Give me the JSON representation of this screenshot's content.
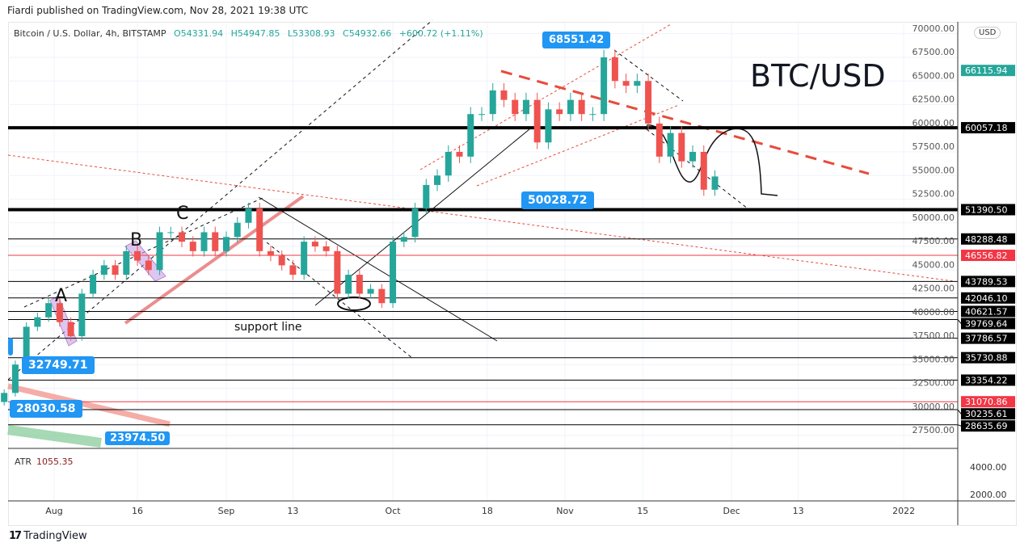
{
  "published": "Fiardi published on TradingView.com, Nov 28, 2021 19:38 UTC",
  "legend": {
    "symbol": "Bitcoin / U.S. Dollar, 4h, BITSTAMP",
    "open": "O54331.94",
    "high": "H54947.85",
    "low": "L53308.93",
    "close": "C54932.66",
    "change": "+600.72 (+1.11%)"
  },
  "currency_button": "USD",
  "title_annotation": "BTC/USD",
  "support_label": "support line",
  "wave_labels": [
    "A",
    "B",
    "C"
  ],
  "callouts": [
    "68551.42",
    "50028.72",
    "32749.71",
    "28030.58",
    "23974.50"
  ],
  "atr": {
    "label": "ATR",
    "value": "1055.35",
    "ticks": [
      "4000.00",
      "2000.00"
    ]
  },
  "footer": {
    "logo": "17",
    "brand": "TradingView"
  },
  "colors": {
    "up": "#26a69a",
    "down": "#ef5350",
    "accent": "#2196f3",
    "level": "#000000",
    "red_level": "#f23645"
  },
  "chart_data": {
    "type": "candlestick",
    "title": "Bitcoin / U.S. Dollar, 4h, BITSTAMP",
    "ylim": [
      26000,
      70500
    ],
    "y_ticks": [
      "70000.00",
      "67500.00",
      "65000.00",
      "62500.00",
      "60000.00",
      "57500.00",
      "55000.00",
      "52500.00",
      "50000.00",
      "47500.00",
      "45000.00",
      "42500.00",
      "40000.00",
      "37500.00",
      "35000.00",
      "32500.00",
      "30000.00",
      "27500.00"
    ],
    "x_ticks": [
      {
        "label": "Aug",
        "date": "2021-08-01"
      },
      {
        "label": "16",
        "date": "2021-08-16"
      },
      {
        "label": "Sep",
        "date": "2021-09-01"
      },
      {
        "label": "13",
        "date": "2021-09-13"
      },
      {
        "label": "Oct",
        "date": "2021-10-01"
      },
      {
        "label": "18",
        "date": "2021-10-18"
      },
      {
        "label": "Nov",
        "date": "2021-11-01"
      },
      {
        "label": "15",
        "date": "2021-11-15"
      },
      {
        "label": "Dec",
        "date": "2021-12-01"
      },
      {
        "label": "13",
        "date": "2021-12-13"
      },
      {
        "label": "2022",
        "date": "2022-01-01"
      }
    ],
    "closes": [
      [
        "2021-07-23",
        32000
      ],
      [
        "2021-07-25",
        35000
      ],
      [
        "2021-07-27",
        39000
      ],
      [
        "2021-07-29",
        40000
      ],
      [
        "2021-07-31",
        41500
      ],
      [
        "2021-08-02",
        39500
      ],
      [
        "2021-08-04",
        38000
      ],
      [
        "2021-08-06",
        42500
      ],
      [
        "2021-08-08",
        44500
      ],
      [
        "2021-08-10",
        45500
      ],
      [
        "2021-08-12",
        44500
      ],
      [
        "2021-08-14",
        47000
      ],
      [
        "2021-08-16",
        46000
      ],
      [
        "2021-08-18",
        45000
      ],
      [
        "2021-08-20",
        49000
      ],
      [
        "2021-08-22",
        49000
      ],
      [
        "2021-08-24",
        48000
      ],
      [
        "2021-08-26",
        47000
      ],
      [
        "2021-08-28",
        49000
      ],
      [
        "2021-08-30",
        47000
      ],
      [
        "2021-09-01",
        48500
      ],
      [
        "2021-09-03",
        50000
      ],
      [
        "2021-09-05",
        51500
      ],
      [
        "2021-09-07",
        47000
      ],
      [
        "2021-09-09",
        46500
      ],
      [
        "2021-09-11",
        45500
      ],
      [
        "2021-09-13",
        44500
      ],
      [
        "2021-09-15",
        48000
      ],
      [
        "2021-09-17",
        47500
      ],
      [
        "2021-09-19",
        47000
      ],
      [
        "2021-09-21",
        42500
      ],
      [
        "2021-09-23",
        44500
      ],
      [
        "2021-09-25",
        42500
      ],
      [
        "2021-09-27",
        43000
      ],
      [
        "2021-09-29",
        41500
      ],
      [
        "2021-10-01",
        48000
      ],
      [
        "2021-10-03",
        48500
      ],
      [
        "2021-10-05",
        51500
      ],
      [
        "2021-10-07",
        54000
      ],
      [
        "2021-10-09",
        55000
      ],
      [
        "2021-10-11",
        57500
      ],
      [
        "2021-10-13",
        57000
      ],
      [
        "2021-10-15",
        61500
      ],
      [
        "2021-10-17",
        61500
      ],
      [
        "2021-10-19",
        64000
      ],
      [
        "2021-10-21",
        63000
      ],
      [
        "2021-10-23",
        61500
      ],
      [
        "2021-10-25",
        63000
      ],
      [
        "2021-10-27",
        58500
      ],
      [
        "2021-10-29",
        62000
      ],
      [
        "2021-10-31",
        61500
      ],
      [
        "2021-11-02",
        63000
      ],
      [
        "2021-11-04",
        61500
      ],
      [
        "2021-11-06",
        61500
      ],
      [
        "2021-11-08",
        67500
      ],
      [
        "2021-11-10",
        65000
      ],
      [
        "2021-11-12",
        64500
      ],
      [
        "2021-11-14",
        65000
      ],
      [
        "2021-11-16",
        60500
      ],
      [
        "2021-11-18",
        57000
      ],
      [
        "2021-11-20",
        59500
      ],
      [
        "2021-11-22",
        56500
      ],
      [
        "2021-11-24",
        57500
      ],
      [
        "2021-11-26",
        53500
      ],
      [
        "2021-11-28",
        54900
      ]
    ],
    "levels": [
      {
        "price": 66115.94,
        "label": "66115.94",
        "kind": "last"
      },
      {
        "price": 60057.18,
        "label": "60057.18",
        "kind": "thick"
      },
      {
        "price": 51390.5,
        "label": "51390.50",
        "kind": "thick"
      },
      {
        "price": 48288.48,
        "label": "48288.48",
        "kind": "line"
      },
      {
        "price": 46556.82,
        "label": "46556.82",
        "kind": "red"
      },
      {
        "price": 43789.53,
        "label": "43789.53",
        "kind": "line"
      },
      {
        "price": 42046.1,
        "label": "42046.10",
        "kind": "line"
      },
      {
        "price": 40621.57,
        "label": "40621.57",
        "kind": "line"
      },
      {
        "price": 39769.64,
        "label": "39769.64",
        "kind": "line"
      },
      {
        "price": 37786.57,
        "label": "37786.57",
        "kind": "line"
      },
      {
        "price": 35730.88,
        "label": "35730.88",
        "kind": "line"
      },
      {
        "price": 33354.22,
        "label": "33354.22",
        "kind": "line"
      },
      {
        "price": 31070.86,
        "label": "31070.86",
        "kind": "red"
      },
      {
        "price": 30235.61,
        "label": "30235.61",
        "kind": "line"
      },
      {
        "price": 28635.69,
        "label": "28635.69",
        "kind": "line"
      }
    ]
  }
}
